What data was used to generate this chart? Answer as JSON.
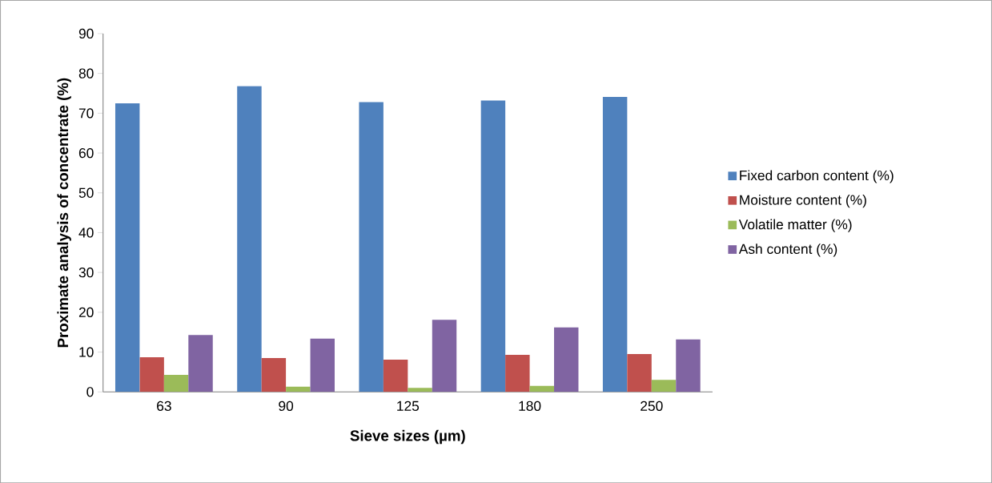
{
  "chart_data": {
    "type": "bar",
    "xlabel": "Sieve sizes (µm)",
    "ylabel": "Proximate analysis of concentrate (%)",
    "categories": [
      "63",
      "90",
      "125",
      "180",
      "250"
    ],
    "series": [
      {
        "name": "Fixed carbon content (%)",
        "color": "#4f81bd",
        "values": [
          72.5,
          76.8,
          72.8,
          73.2,
          74.1
        ]
      },
      {
        "name": "Moisture content (%)",
        "color": "#c0504d",
        "values": [
          8.7,
          8.5,
          8.1,
          9.3,
          9.5
        ]
      },
      {
        "name": "Volatile matter (%)",
        "color": "#9bbb59",
        "values": [
          4.3,
          1.3,
          1.0,
          1.5,
          3.0
        ]
      },
      {
        "name": "Ash content (%)",
        "color": "#8064a2",
        "values": [
          14.3,
          13.4,
          18.1,
          16.2,
          13.2
        ]
      }
    ],
    "ylim": [
      0,
      90
    ],
    "yticks": [
      0,
      10,
      20,
      30,
      40,
      50,
      60,
      70,
      80,
      90
    ],
    "grid": false,
    "legend": "right"
  }
}
